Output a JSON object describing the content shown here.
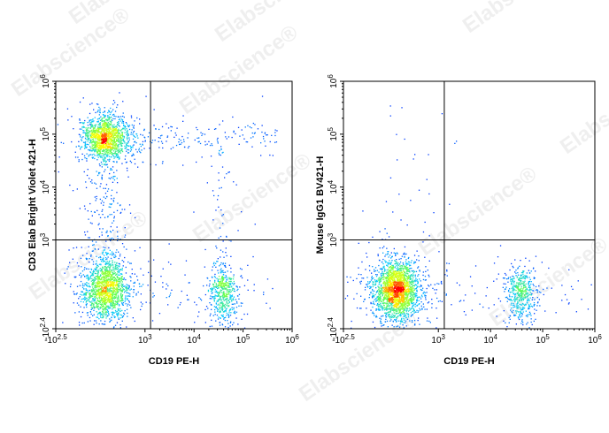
{
  "watermark": "Elabscience",
  "watermark_symbol": "®",
  "chart_data": [
    {
      "type": "scatter",
      "subtype": "flow-cytometry-density-dot-plot",
      "xlabel": "CD19 PE-H",
      "ylabel": "CD3 Elab Bright Violet 421-H",
      "x_scale": "biexponential",
      "y_scale": "biexponential",
      "xlim": [
        -316,
        1000000
      ],
      "ylim": [
        -251,
        1000000
      ],
      "x_ticks": [
        {
          "base": "-10",
          "exp": "2.5",
          "value": -316
        },
        {
          "base": "10",
          "exp": "3",
          "value": 1000
        },
        {
          "base": "10",
          "exp": "4",
          "value": 10000
        },
        {
          "base": "10",
          "exp": "5",
          "value": 100000
        },
        {
          "base": "10",
          "exp": "6",
          "value": 1000000
        }
      ],
      "y_ticks": [
        {
          "base": "-10",
          "exp": "2.4",
          "value": -251
        },
        {
          "base": "10",
          "exp": "3",
          "value": 1000
        },
        {
          "base": "10",
          "exp": "4",
          "value": 10000
        },
        {
          "base": "10",
          "exp": "5",
          "value": 100000
        },
        {
          "base": "10",
          "exp": "6",
          "value": 1000000
        }
      ],
      "quadrant_gate": {
        "x": 1300,
        "y": 1000
      },
      "populations": [
        {
          "name": "",
          "x_center": 150,
          "y_center": 85000,
          "count": 1400
        },
        {
          "name": "",
          "x_center": 150,
          "y_center": 100,
          "count": 1500
        },
        {
          "name": "",
          "x_center": 38000,
          "y_center": 60,
          "count": 520
        },
        {
          "name": "",
          "x_center": 150,
          "y_center": 3000,
          "count": 180
        }
      ],
      "grid": false,
      "legend": "none"
    },
    {
      "type": "scatter",
      "subtype": "flow-cytometry-density-dot-plot",
      "xlabel": "CD19 PE-H",
      "ylabel": "Mouse IgG1 BV421-H",
      "x_scale": "biexponential",
      "y_scale": "biexponential",
      "xlim": [
        -316,
        1000000
      ],
      "ylim": [
        -251,
        1000000
      ],
      "x_ticks": [
        {
          "base": "-10",
          "exp": "2.5",
          "value": -316
        },
        {
          "base": "10",
          "exp": "3",
          "value": 1000
        },
        {
          "base": "10",
          "exp": "4",
          "value": 10000
        },
        {
          "base": "10",
          "exp": "5",
          "value": 100000
        },
        {
          "base": "10",
          "exp": "6",
          "value": 1000000
        }
      ],
      "y_ticks": [
        {
          "base": "-10",
          "exp": "2.4",
          "value": -251
        },
        {
          "base": "10",
          "exp": "3",
          "value": 1000
        },
        {
          "base": "10",
          "exp": "4",
          "value": 10000
        },
        {
          "base": "10",
          "exp": "5",
          "value": 100000
        },
        {
          "base": "10",
          "exp": "6",
          "value": 1000000
        }
      ],
      "quadrant_gate": {
        "x": 1300,
        "y": 1000
      },
      "populations": [
        {
          "name": "",
          "x_center": 150,
          "y_center": 90,
          "count": 2200
        },
        {
          "name": "",
          "x_center": 38000,
          "y_center": 60,
          "count": 480
        }
      ],
      "grid": false,
      "legend": "none"
    }
  ],
  "colors": {
    "axis": "#000000",
    "density_low": "#0000ff",
    "density_mid": "#00e0ff",
    "density_high": "#ffff00",
    "density_peak": "#ff0000",
    "watermark": "#dddddd"
  }
}
